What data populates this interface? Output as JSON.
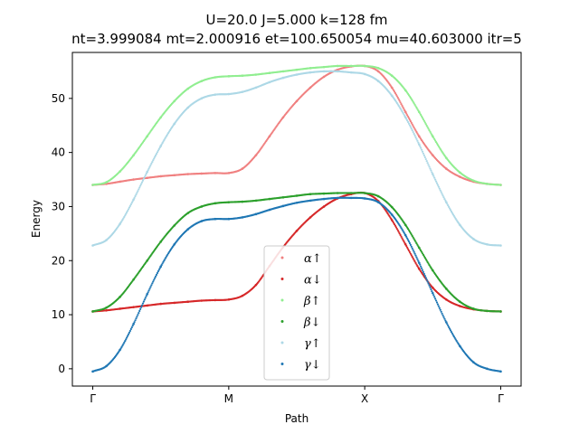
{
  "chart_data": {
    "type": "scatter",
    "title": "U=20.0 J=5.000 k=128 fm",
    "subtitle": "nt=3.999084 mt=2.000916 et=100.650054 mu=40.603000 itr=5",
    "xlabel": "Path",
    "ylabel": "Energy",
    "xlim": [
      -0.15,
      3.15
    ],
    "ylim": [
      -3.2,
      58.5
    ],
    "x_ticks": [
      {
        "value": 0,
        "label": "Γ"
      },
      {
        "value": 1,
        "label": "M"
      },
      {
        "value": 2,
        "label": "X"
      },
      {
        "value": 3,
        "label": "Γ"
      }
    ],
    "y_ticks": [
      0,
      10,
      20,
      30,
      40,
      50
    ],
    "grid": false,
    "legend_position": "lower-center",
    "x": [
      0.0,
      0.1,
      0.2,
      0.3,
      0.4,
      0.5,
      0.6,
      0.7,
      0.8,
      0.9,
      1.0,
      1.1,
      1.2,
      1.3,
      1.4,
      1.5,
      1.6,
      1.7,
      1.8,
      1.9,
      2.0,
      2.1,
      2.2,
      2.3,
      2.4,
      2.5,
      2.6,
      2.7,
      2.8,
      2.9,
      3.0
    ],
    "series": [
      {
        "name": "α↑",
        "color": "#f08080",
        "values": [
          34.0,
          34.2,
          34.6,
          35.0,
          35.3,
          35.6,
          35.8,
          36.0,
          36.1,
          36.2,
          36.2,
          37.0,
          39.5,
          43.0,
          46.5,
          49.5,
          52.0,
          54.0,
          55.3,
          55.9,
          56.0,
          55.0,
          52.0,
          47.5,
          43.0,
          39.5,
          37.0,
          35.5,
          34.6,
          34.2,
          34.0
        ]
      },
      {
        "name": "α↓",
        "color": "#d62728",
        "values": [
          10.6,
          10.8,
          11.1,
          11.4,
          11.7,
          12.0,
          12.2,
          12.4,
          12.6,
          12.7,
          12.8,
          13.5,
          15.5,
          19.0,
          22.5,
          25.5,
          28.0,
          30.0,
          31.5,
          32.3,
          32.5,
          31.0,
          27.5,
          23.0,
          18.5,
          15.0,
          12.8,
          11.6,
          11.0,
          10.7,
          10.6
        ]
      },
      {
        "name": "β↑",
        "color": "#90ee90",
        "values": [
          34.0,
          34.5,
          36.5,
          39.5,
          43.0,
          46.5,
          49.5,
          51.8,
          53.2,
          53.9,
          54.1,
          54.2,
          54.4,
          54.7,
          55.0,
          55.3,
          55.6,
          55.8,
          56.0,
          56.0,
          56.0,
          55.6,
          54.2,
          51.5,
          47.5,
          43.0,
          39.0,
          36.3,
          34.8,
          34.2,
          34.0
        ]
      },
      {
        "name": "β↓",
        "color": "#2ca02c",
        "values": [
          10.6,
          11.3,
          13.3,
          16.5,
          20.0,
          23.5,
          26.5,
          28.8,
          30.0,
          30.6,
          30.8,
          30.9,
          31.1,
          31.4,
          31.7,
          32.0,
          32.3,
          32.4,
          32.5,
          32.5,
          32.5,
          31.9,
          29.9,
          26.6,
          22.4,
          18.2,
          14.8,
          12.4,
          11.1,
          10.7,
          10.6
        ]
      },
      {
        "name": "γ↑",
        "color": "#add8e6",
        "values": [
          22.8,
          23.8,
          26.8,
          31.3,
          36.4,
          41.2,
          45.3,
          48.3,
          50.0,
          50.7,
          50.8,
          51.2,
          52.0,
          53.0,
          53.8,
          54.4,
          54.8,
          55.0,
          55.0,
          54.8,
          54.5,
          53.2,
          50.5,
          46.5,
          41.5,
          36.0,
          30.8,
          26.6,
          24.0,
          23.0,
          22.8
        ]
      },
      {
        "name": "γ↓",
        "color": "#1f77b4",
        "values": [
          -0.5,
          0.5,
          3.5,
          8.3,
          13.8,
          18.9,
          23.0,
          25.8,
          27.3,
          27.7,
          27.7,
          28.0,
          28.6,
          29.4,
          30.1,
          30.7,
          31.1,
          31.4,
          31.6,
          31.6,
          31.5,
          30.8,
          28.5,
          24.7,
          19.6,
          14.0,
          8.6,
          4.2,
          1.2,
          0.0,
          -0.5
        ]
      }
    ]
  }
}
